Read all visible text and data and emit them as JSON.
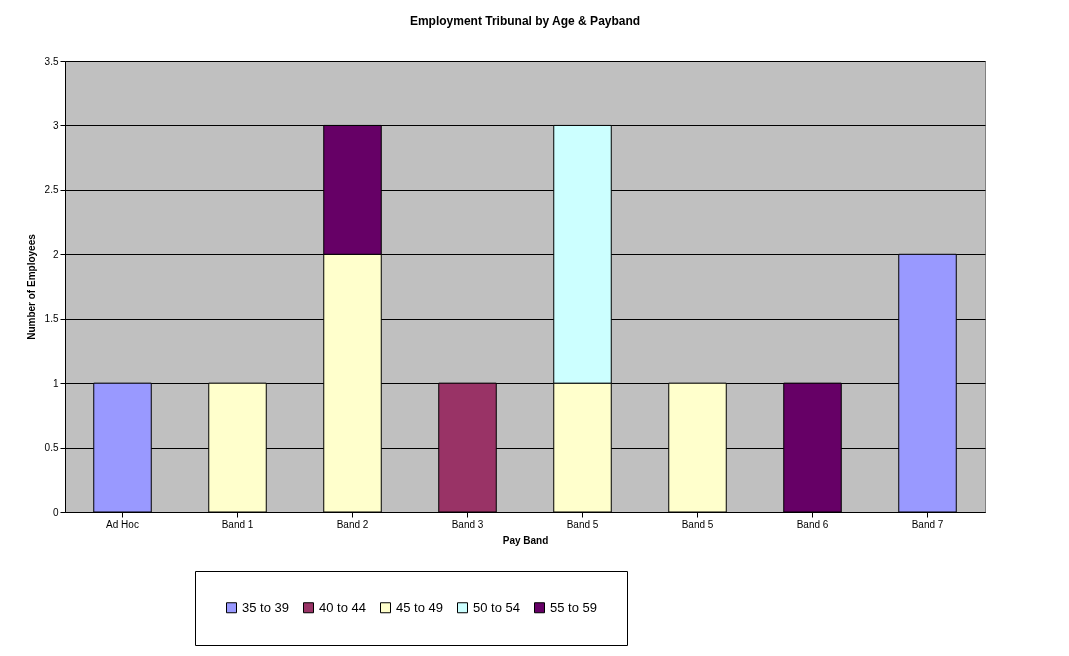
{
  "chart_data": {
    "type": "bar",
    "title": "Employment Tribunal by Age & Payband",
    "xlabel": "Pay Band",
    "ylabel": "Number of Employees",
    "categories": [
      "Ad Hoc",
      "Band 1",
      "Band 2",
      "Band 3",
      "Band 5",
      "Band 5",
      "Band 6",
      "Band 7"
    ],
    "series": [
      {
        "name": "35 to 39",
        "color": "#9999ff",
        "values": [
          1,
          null,
          null,
          null,
          null,
          null,
          null,
          2
        ]
      },
      {
        "name": "40 to 44",
        "color": "#993366",
        "values": [
          null,
          null,
          null,
          1,
          null,
          null,
          null,
          null
        ]
      },
      {
        "name": "45 to 49",
        "color": "#ffffcc",
        "values": [
          null,
          1,
          2,
          null,
          1,
          1,
          null,
          null
        ]
      },
      {
        "name": "50 to 54",
        "color": "#ccffff",
        "values": [
          null,
          null,
          null,
          null,
          2,
          null,
          null,
          null
        ]
      },
      {
        "name": "55 to 59",
        "color": "#660066",
        "values": [
          null,
          null,
          1,
          null,
          null,
          null,
          1,
          null
        ]
      }
    ],
    "stacked": true,
    "ylim": [
      0,
      3.5
    ],
    "yticks": [
      0,
      0.5,
      1,
      1.5,
      2,
      2.5,
      3,
      3.5
    ],
    "grid": "y",
    "legend": "bottom"
  }
}
